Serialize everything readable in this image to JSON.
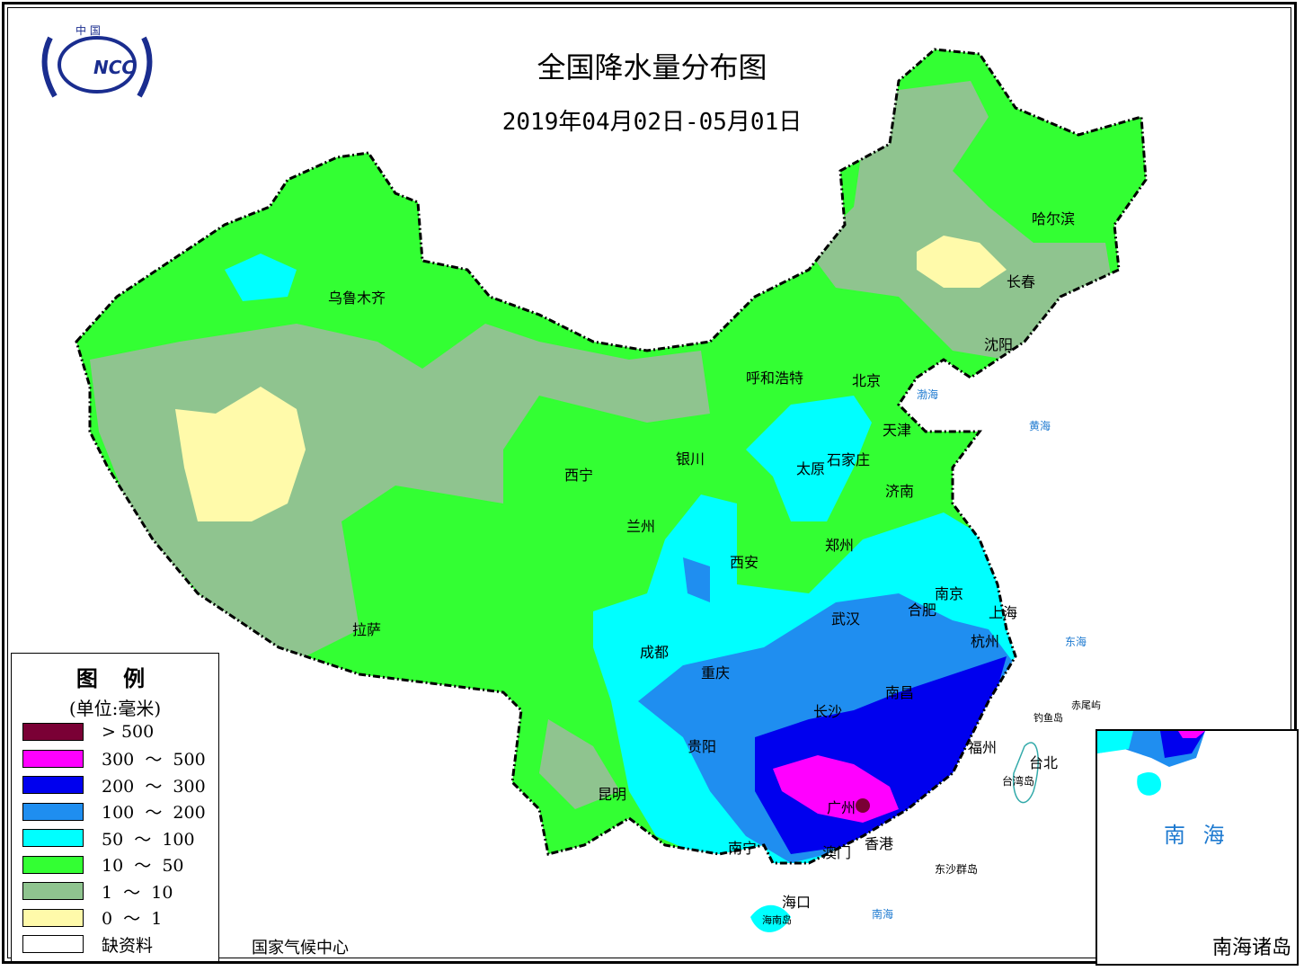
{
  "title": "全国降水量分布图",
  "subtitle": "2019年04月02日-05月01日",
  "logo_text": "中国 NCC",
  "organization": "国家气候中心",
  "legend": {
    "title": "图 例",
    "unit": "(单位:毫米)",
    "items": [
      {
        "label": "> 500",
        "color": "#7a0035"
      },
      {
        "label": "300  ～  500",
        "color": "#ff00ff"
      },
      {
        "label": "200  ～  300",
        "color": "#0000ee"
      },
      {
        "label": "100  ～  200",
        "color": "#1f8ef0"
      },
      {
        "label": "50  ～  100",
        "color": "#00ffff"
      },
      {
        "label": "10  ～  50",
        "color": "#33ff33"
      },
      {
        "label": "1  ～  10",
        "color": "#8fc48f"
      },
      {
        "label": "0  ～  1",
        "color": "#fffaaa"
      },
      {
        "label": "缺资料",
        "color": "#ffffff"
      }
    ]
  },
  "cities": [
    "乌鲁木齐",
    "哈尔滨",
    "长春",
    "沈阳",
    "呼和浩特",
    "北京",
    "天津",
    "石家庄",
    "太原",
    "银川",
    "西宁",
    "兰州",
    "济南",
    "郑州",
    "西安",
    "南京",
    "合肥",
    "上海",
    "杭州",
    "武汉",
    "拉萨",
    "成都",
    "重庆",
    "长沙",
    "南昌",
    "贵阳",
    "福州",
    "台北",
    "昆明",
    "广州",
    "南宁",
    "澳门",
    "香港",
    "海口"
  ],
  "places": [
    "台湾岛",
    "钓鱼岛",
    "赤尾屿",
    "东沙群岛",
    "海南岛"
  ],
  "seas": [
    "渤海",
    "黄海",
    "东海",
    "南海"
  ],
  "inset": {
    "title": "南海诸岛",
    "sea_label": "南 海"
  }
}
